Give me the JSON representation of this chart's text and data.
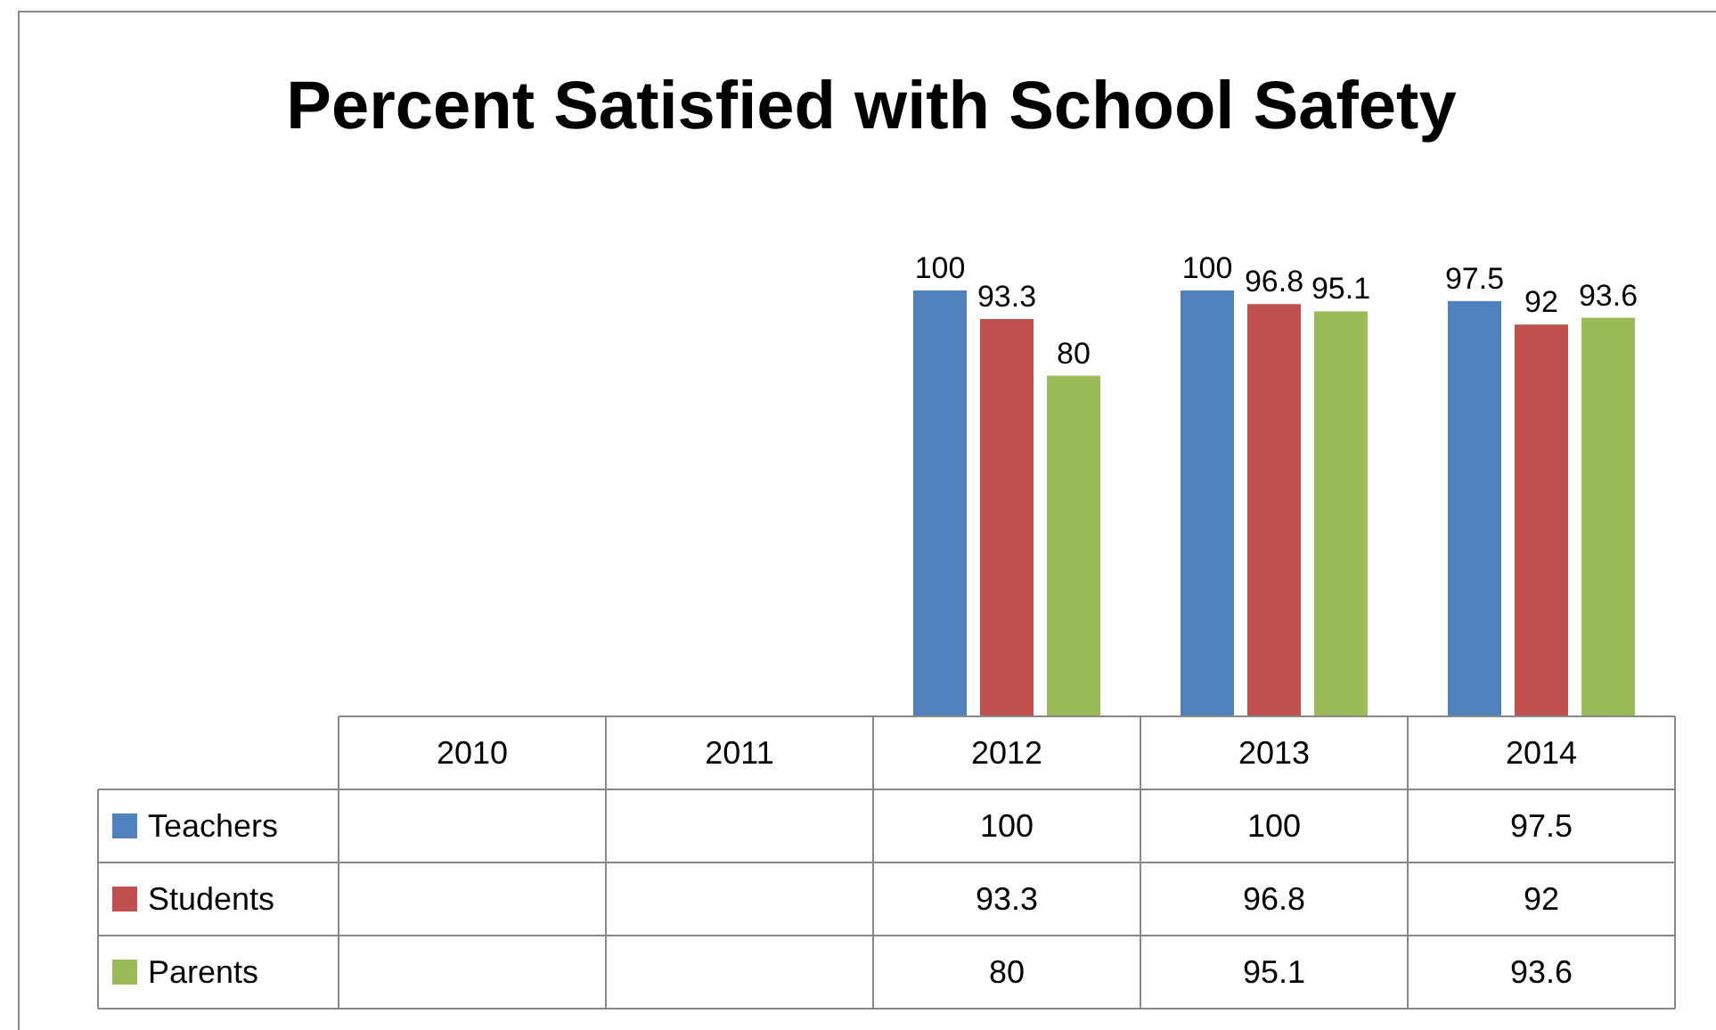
{
  "chart_data": {
    "type": "bar",
    "title": "Percent Satisfied with School Safety",
    "categories": [
      "2010",
      "2011",
      "2012",
      "2013",
      "2014"
    ],
    "series": [
      {
        "name": "Teachers",
        "color": "#4f81bd",
        "values": [
          null,
          null,
          100,
          100,
          97.5
        ]
      },
      {
        "name": "Students",
        "color": "#c0504d",
        "values": [
          null,
          null,
          93.3,
          96.8,
          92
        ]
      },
      {
        "name": "Parents",
        "color": "#9bbb59",
        "values": [
          null,
          null,
          80,
          95.1,
          93.6
        ]
      }
    ],
    "annotations": [
      "100",
      "100",
      "97.5",
      "93.3",
      "96.8",
      "92",
      "80",
      "95.1",
      "93.6"
    ],
    "data_labels": true,
    "legend": "bottom"
  }
}
